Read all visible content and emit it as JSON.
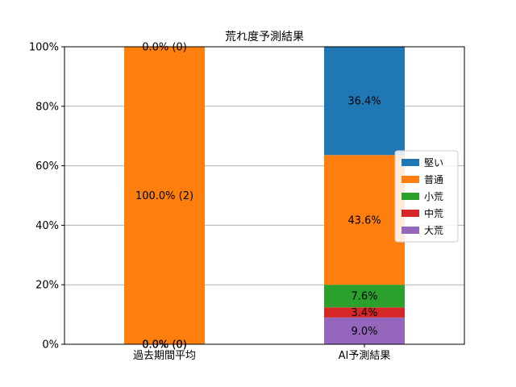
{
  "chart_data": {
    "type": "bar",
    "stacked": true,
    "title": "荒れ度予測結果",
    "xlabel": "",
    "ylabel": "",
    "ylim": [
      0,
      100
    ],
    "y_ticks": [
      "0%",
      "20%",
      "40%",
      "60%",
      "80%",
      "100%"
    ],
    "y_tick_values": [
      0,
      20,
      40,
      60,
      80,
      100
    ],
    "grid": "horizontal",
    "legend_position": "right",
    "categories": [
      "過去期間平均",
      "AI予測結果"
    ],
    "series": [
      {
        "name": "大荒",
        "color": "#9467bd",
        "values": [
          0.0,
          9.0
        ],
        "labels": [
          "0.0% (0)",
          "9.0%"
        ]
      },
      {
        "name": "中荒",
        "color": "#d62728",
        "values": [
          0.0,
          3.4
        ],
        "labels": [
          "0.0% (0)",
          "3.4%"
        ]
      },
      {
        "name": "小荒",
        "color": "#2ca02c",
        "values": [
          0.0,
          7.6
        ],
        "labels": [
          "0.0% (0)",
          "7.6%"
        ]
      },
      {
        "name": "普通",
        "color": "#ff7f0e",
        "values": [
          100.0,
          43.6
        ],
        "labels": [
          "100.0% (2)",
          "43.6%"
        ]
      },
      {
        "name": "堅い",
        "color": "#1f77b4",
        "values": [
          0.0,
          36.4
        ],
        "labels": [
          "0.0% (0)",
          "36.4%"
        ]
      }
    ],
    "legend_order": [
      "堅い",
      "普通",
      "小荒",
      "中荒",
      "大荒"
    ]
  }
}
